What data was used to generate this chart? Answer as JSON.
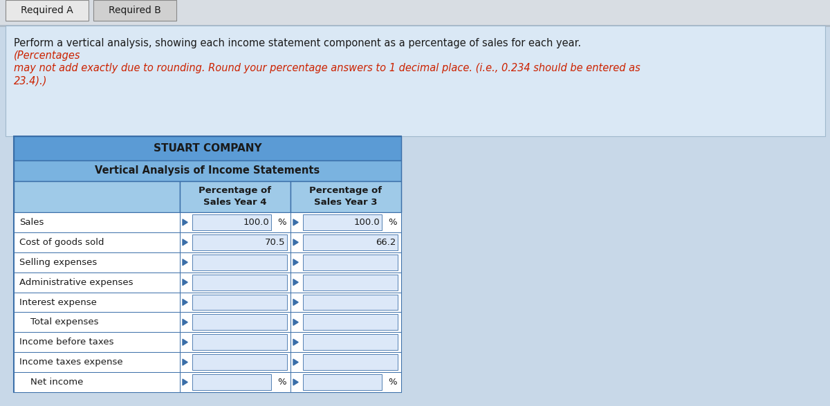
{
  "tab1": "Required A",
  "tab2": "Required B",
  "normal_text": "Perform a vertical analysis, showing each income statement component as a percentage of sales for each year. ",
  "italic_text": "(Percentages\nmay not add exactly due to rounding. Round your percentage answers to 1 decimal place. (i.e., 0.234 should be entered as\n23.4).)",
  "company_title": "STUART COMPANY",
  "table_subtitle": "Vertical Analysis of Income Statements",
  "col1_header": "Percentage of\nSales Year 4",
  "col2_header": "Percentage of\nSales Year 3",
  "rows": [
    {
      "label": "Sales",
      "val1": "100.0",
      "pct1": true,
      "val2": "100.0",
      "pct2": true,
      "indent": false
    },
    {
      "label": "Cost of goods sold",
      "val1": "70.5",
      "pct1": false,
      "val2": "66.2",
      "pct2": false,
      "indent": false
    },
    {
      "label": "Selling expenses",
      "val1": "",
      "pct1": false,
      "val2": "",
      "pct2": false,
      "indent": false
    },
    {
      "label": "Administrative expenses",
      "val1": "",
      "pct1": false,
      "val2": "",
      "pct2": false,
      "indent": false
    },
    {
      "label": "Interest expense",
      "val1": "",
      "pct1": false,
      "val2": "",
      "pct2": false,
      "indent": false
    },
    {
      "label": "Total expenses",
      "val1": "",
      "pct1": false,
      "val2": "",
      "pct2": false,
      "indent": true
    },
    {
      "label": "Income before taxes",
      "val1": "",
      "pct1": false,
      "val2": "",
      "pct2": false,
      "indent": false
    },
    {
      "label": "Income taxes expense",
      "val1": "",
      "pct1": false,
      "val2": "",
      "pct2": false,
      "indent": false
    },
    {
      "label": "Net income",
      "val1": "",
      "pct1": true,
      "val2": "",
      "pct2": true,
      "indent": true
    }
  ],
  "header_bg": "#5b9bd5",
  "subheader_bg": "#7ab3e0",
  "col_header_bg": "#9fcae8",
  "row_bg": "#ffffff",
  "border_color": "#3a6ea8",
  "tab_active_bg": "#e8e8e8",
  "tab_inactive_bg": "#d0d0d0",
  "instruction_bg": "#dae8f5",
  "page_bg": "#c8d8e8",
  "text_dark": "#1a1a1a",
  "italic_color": "#cc2200",
  "input_bg": "#dce8f8",
  "triangle_color": "#3a6ea8"
}
